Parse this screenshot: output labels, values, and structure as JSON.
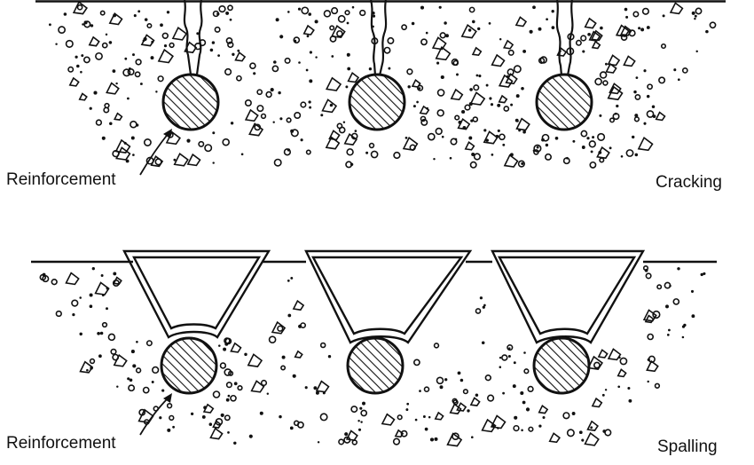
{
  "panels": [
    {
      "id": "cracking",
      "label": "Cracking",
      "reinforcement_label": "Reinforcement"
    },
    {
      "id": "spalling",
      "label": "Spalling",
      "reinforcement_label": "Reinforcement"
    }
  ],
  "colors": {
    "ink": "#111111",
    "background": "#ffffff"
  }
}
